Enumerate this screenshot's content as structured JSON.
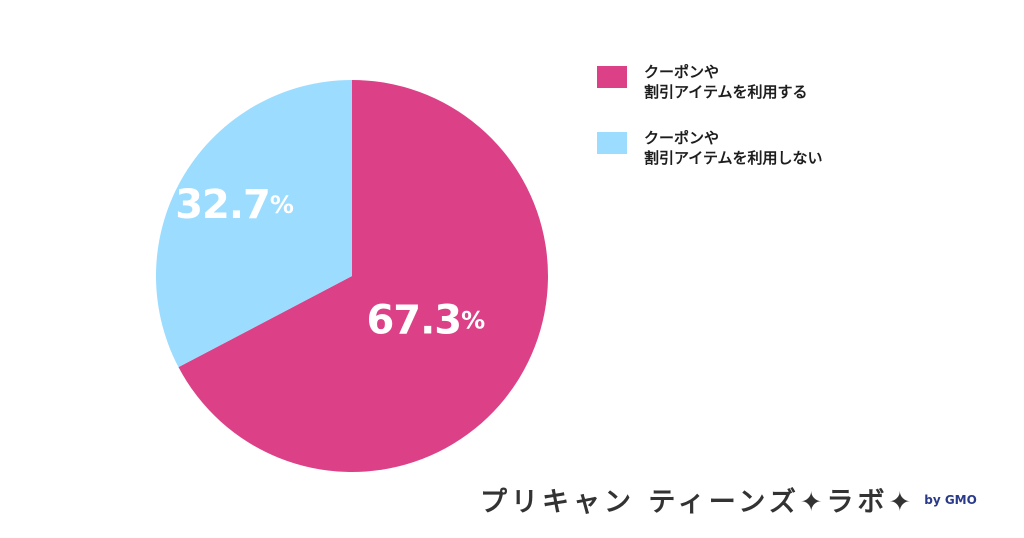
{
  "chart_data": {
    "type": "pie",
    "title": "",
    "series": [
      {
        "name": "クーポンや\n割引アイテムを利用する",
        "value": 67.3,
        "label": "67.3%",
        "color": "#dc4188"
      },
      {
        "name": "クーポンや\n割引アイテムを利用しない",
        "value": 32.7,
        "label": "32.7%",
        "color": "#9cdcff"
      }
    ],
    "start_angle": "12 o'clock",
    "direction": "clockwise",
    "legend_position": "top-right",
    "label_color": "#ffffff"
  },
  "brand": {
    "text": "プリキャン ティーンズ✦ラボ✦",
    "by": "by GMO"
  }
}
